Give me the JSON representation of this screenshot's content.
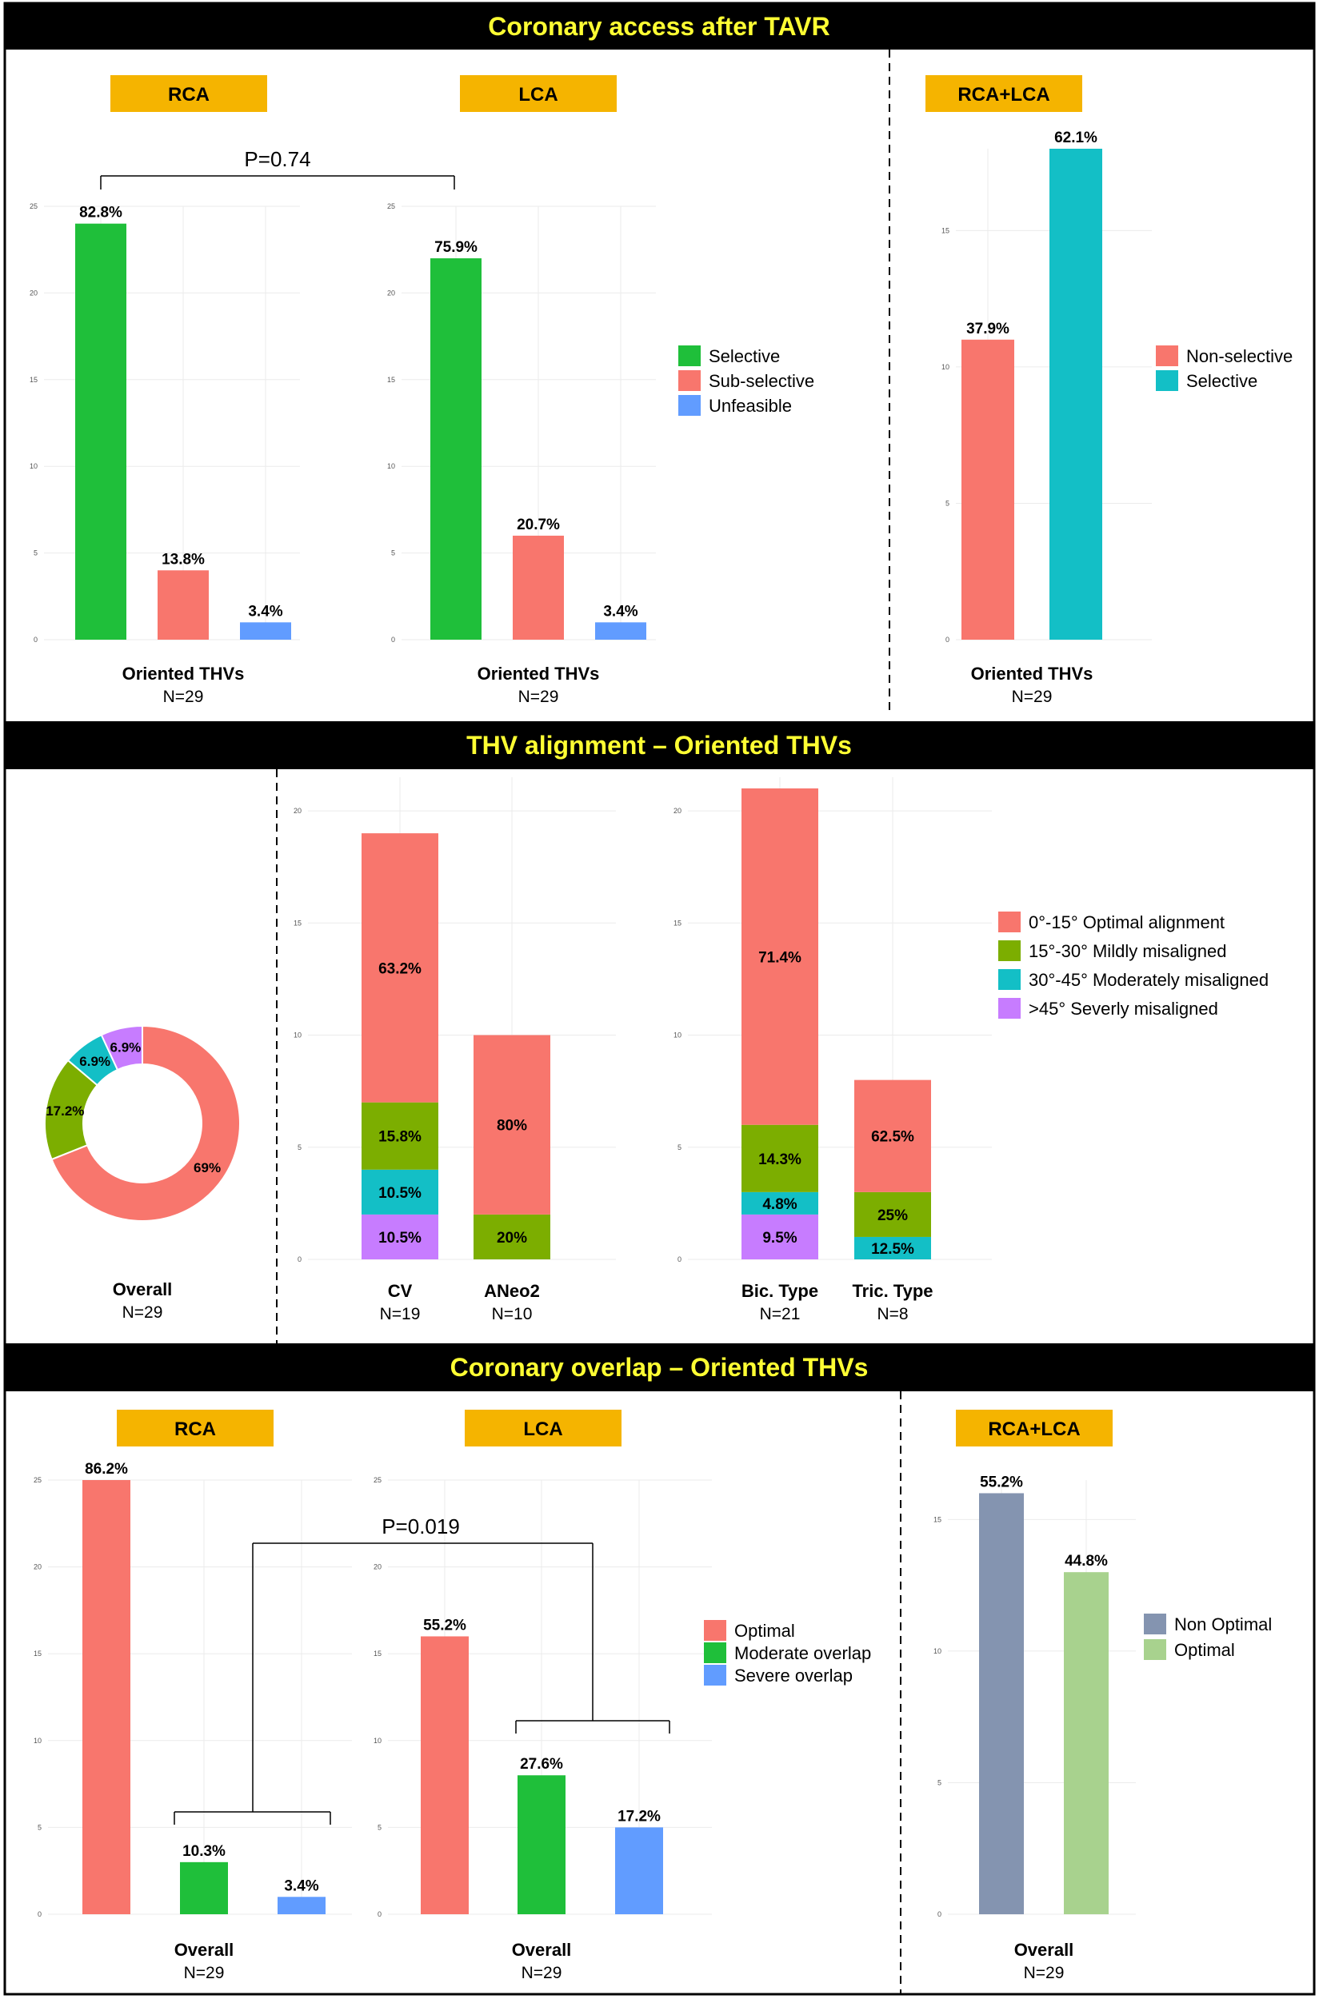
{
  "colors": {
    "selective_green": "#1FBF3A",
    "salmon": "#F8766D",
    "blue": "#619CFF",
    "teal": "#13BFC6",
    "olive": "#7CAE00",
    "purple": "#C77CFF",
    "slate": "#8494B0",
    "lightgreen": "#A8D28E",
    "header_bg": "#000000",
    "header_text": "#FFFF33",
    "tag_bg": "#F5B400"
  },
  "sections": {
    "access": {
      "title": "Coronary access after TAVR"
    },
    "alignment": {
      "title": "THV alignment – Oriented THVs"
    },
    "overlap": {
      "title": "Coronary overlap – Oriented THVs"
    }
  },
  "legends": {
    "access3": [
      "Selective",
      "Sub-selective",
      "Unfeasible"
    ],
    "access2": [
      "Non-selective",
      "Selective"
    ],
    "alignment": [
      "0°-15° Optimal alignment",
      "15°-30° Mildly misaligned",
      "30°-45° Moderately misaligned",
      ">45° Severly misaligned"
    ],
    "overlap3": [
      "Optimal",
      "Moderate overlap",
      "Severe overlap"
    ],
    "overlap2": [
      "Non Optimal",
      "Optimal"
    ]
  },
  "chart_data": [
    {
      "id": "access_rca",
      "type": "bar",
      "tag": "RCA",
      "categories": [
        "Selective",
        "Sub-selective",
        "Unfeasible"
      ],
      "values": [
        24,
        4,
        1
      ],
      "labels": [
        "82.8%",
        "13.8%",
        "3.4%"
      ],
      "ylim": [
        0,
        25
      ],
      "yticks": [
        0,
        5,
        10,
        15,
        20,
        25
      ],
      "xlabel": "Oriented THVs",
      "n": "N=29"
    },
    {
      "id": "access_lca",
      "type": "bar",
      "tag": "LCA",
      "categories": [
        "Selective",
        "Sub-selective",
        "Unfeasible"
      ],
      "values": [
        22,
        6,
        1
      ],
      "labels": [
        "75.9%",
        "20.7%",
        "3.4%"
      ],
      "ylim": [
        0,
        25
      ],
      "yticks": [
        0,
        5,
        10,
        15,
        20,
        25
      ],
      "xlabel": "Oriented THVs",
      "n": "N=29"
    },
    {
      "id": "access_both",
      "type": "bar",
      "tag": "RCA+LCA",
      "categories": [
        "Non-selective",
        "Selective"
      ],
      "values": [
        11,
        18
      ],
      "labels": [
        "37.9%",
        "62.1%"
      ],
      "ylim": [
        0,
        18
      ],
      "yticks": [
        0,
        5,
        10,
        15
      ],
      "xlabel": "Oriented THVs",
      "n": "N=29"
    },
    {
      "id": "access_pvalue",
      "type": "annotation",
      "text": "P=0.74"
    },
    {
      "id": "alignment_overall",
      "type": "pie",
      "donut": true,
      "categories": [
        "0°-15° Optimal alignment",
        "15°-30° Mildly misaligned",
        "30°-45° Moderately misaligned",
        ">45° Severly misaligned"
      ],
      "values": [
        69,
        17.2,
        6.9,
        6.9
      ],
      "labels": [
        "69%",
        "17.2%",
        "6.9%",
        "6.9%"
      ],
      "xlabel": "Overall",
      "n": "N=29"
    },
    {
      "id": "alignment_valve",
      "type": "bar",
      "stacked": true,
      "categories": [
        "CV",
        "ANeo2"
      ],
      "ns": [
        "N=19",
        "N=10"
      ],
      "series": [
        {
          "name": ">45° Severly misaligned",
          "values": [
            2,
            0
          ],
          "labels": [
            "10.5%",
            ""
          ]
        },
        {
          "name": "30°-45° Moderately misaligned",
          "values": [
            2,
            0
          ],
          "labels": [
            "10.5%",
            ""
          ]
        },
        {
          "name": "15°-30° Mildly misaligned",
          "values": [
            3,
            2
          ],
          "labels": [
            "15.8%",
            "20%"
          ]
        },
        {
          "name": "0°-15° Optimal alignment",
          "values": [
            12,
            8
          ],
          "labels": [
            "63.2%",
            "80%"
          ]
        }
      ],
      "ylim": [
        0,
        21.5
      ],
      "yticks": [
        0,
        5,
        10,
        15,
        20
      ]
    },
    {
      "id": "alignment_type",
      "type": "bar",
      "stacked": true,
      "categories": [
        "Bic. Type",
        "Tric. Type"
      ],
      "ns": [
        "N=21",
        "N=8"
      ],
      "series": [
        {
          "name": ">45° Severly misaligned",
          "values": [
            2,
            0
          ],
          "labels": [
            "9.5%",
            ""
          ]
        },
        {
          "name": "30°-45° Moderately misaligned",
          "values": [
            1,
            1
          ],
          "labels": [
            "4.8%",
            "12.5%"
          ]
        },
        {
          "name": "15°-30° Mildly misaligned",
          "values": [
            3,
            2
          ],
          "labels": [
            "14.3%",
            "25%"
          ]
        },
        {
          "name": "0°-15° Optimal alignment",
          "values": [
            15,
            5
          ],
          "labels": [
            "71.4%",
            "62.5%"
          ]
        }
      ],
      "ylim": [
        0,
        21.5
      ],
      "yticks": [
        0,
        5,
        10,
        15,
        20
      ]
    },
    {
      "id": "overlap_rca",
      "type": "bar",
      "tag": "RCA",
      "categories": [
        "Optimal",
        "Moderate overlap",
        "Severe overlap"
      ],
      "values": [
        25,
        3,
        1
      ],
      "labels": [
        "86.2%",
        "10.3%",
        "3.4%"
      ],
      "ylim": [
        0,
        25
      ],
      "yticks": [
        0,
        5,
        10,
        15,
        20,
        25
      ],
      "xlabel": "Overall",
      "n": "N=29"
    },
    {
      "id": "overlap_lca",
      "type": "bar",
      "tag": "LCA",
      "categories": [
        "Optimal",
        "Moderate overlap",
        "Severe overlap"
      ],
      "values": [
        16,
        8,
        5
      ],
      "labels": [
        "55.2%",
        "27.6%",
        "17.2%"
      ],
      "ylim": [
        0,
        25
      ],
      "yticks": [
        0,
        5,
        10,
        15,
        20,
        25
      ],
      "xlabel": "Overall",
      "n": "N=29"
    },
    {
      "id": "overlap_both",
      "type": "bar",
      "tag": "RCA+LCA",
      "categories": [
        "Non Optimal",
        "Optimal"
      ],
      "values": [
        16,
        13
      ],
      "labels": [
        "55.2%",
        "44.8%"
      ],
      "ylim": [
        0,
        16.5
      ],
      "yticks": [
        0,
        5,
        10,
        15
      ],
      "xlabel": "Overall",
      "n": "N=29"
    },
    {
      "id": "overlap_pvalue",
      "type": "annotation",
      "text": "P=0.019"
    }
  ]
}
